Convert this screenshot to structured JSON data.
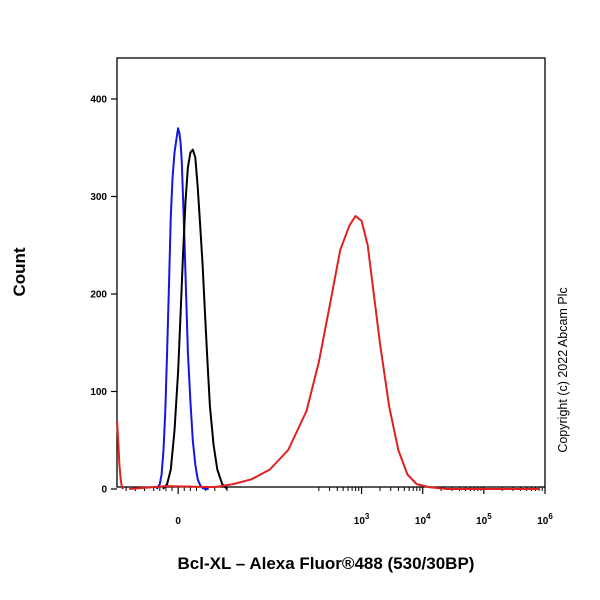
{
  "chart_data": {
    "type": "line",
    "xlabel": "Bcl-XL – Alexa Fluor®488 (530/30BP)",
    "ylabel": "Count",
    "ylim": [
      0,
      440
    ],
    "xlim": [
      -1,
      6
    ],
    "x_scale": "biexponential",
    "grid": false,
    "y_ticks": [
      0,
      100,
      200,
      300,
      400
    ],
    "y_tick_labels": [
      "0",
      "100",
      "200",
      "300",
      "400"
    ],
    "x_ticks": [
      0,
      3,
      4,
      5,
      6
    ],
    "x_tick_labels": [
      {
        "base": "0",
        "exp": ""
      },
      {
        "base": "10",
        "exp": "3"
      },
      {
        "base": "10",
        "exp": "4"
      },
      {
        "base": "10",
        "exp": "5"
      },
      {
        "base": "10",
        "exp": "6"
      }
    ],
    "series": [
      {
        "color": "#1414e6",
        "x": [
          -0.35,
          -0.3,
          -0.27,
          -0.24,
          -0.21,
          -0.18,
          -0.15,
          -0.12,
          -0.09,
          -0.06,
          -0.03,
          0.0,
          0.02,
          0.04,
          0.06,
          0.08,
          0.1,
          0.13,
          0.16,
          0.2,
          0.24,
          0.28,
          0.32,
          0.36,
          0.4,
          0.44,
          0.5
        ],
        "y": [
          0,
          5,
          15,
          40,
          80,
          140,
          210,
          280,
          320,
          345,
          358,
          370,
          365,
          355,
          335,
          300,
          260,
          200,
          140,
          90,
          50,
          25,
          10,
          4,
          1,
          0,
          0
        ]
      },
      {
        "color": "#000000",
        "x": [
          -0.25,
          -0.18,
          -0.12,
          -0.06,
          0.0,
          0.04,
          0.08,
          0.12,
          0.16,
          0.2,
          0.24,
          0.28,
          0.32,
          0.36,
          0.4,
          0.44,
          0.48,
          0.52,
          0.58,
          0.64,
          0.72,
          0.8
        ],
        "y": [
          0,
          5,
          20,
          60,
          120,
          180,
          240,
          295,
          330,
          345,
          348,
          340,
          310,
          270,
          230,
          180,
          130,
          85,
          45,
          20,
          5,
          0
        ]
      },
      {
        "color": "#e02020",
        "x": [
          -0.8,
          -0.2,
          0.6,
          0.9,
          1.2,
          1.5,
          1.8,
          2.1,
          2.3,
          2.5,
          2.65,
          2.8,
          2.9,
          3.0,
          3.1,
          3.2,
          3.3,
          3.45,
          3.6,
          3.75,
          3.9,
          4.1,
          4.4,
          5.0,
          5.9
        ],
        "y": [
          0,
          3,
          2,
          5,
          10,
          20,
          40,
          80,
          130,
          195,
          245,
          270,
          280,
          275,
          250,
          200,
          150,
          85,
          40,
          15,
          5,
          2,
          0,
          0,
          0
        ]
      },
      {
        "color": "#e02020",
        "x": [
          -1.0,
          -0.98,
          -0.96,
          -0.94,
          -0.92,
          -0.9
        ],
        "y": [
          70,
          50,
          25,
          10,
          2,
          0
        ]
      }
    ]
  },
  "watermark": "Copyright (c) 2022 Abcam Plc"
}
